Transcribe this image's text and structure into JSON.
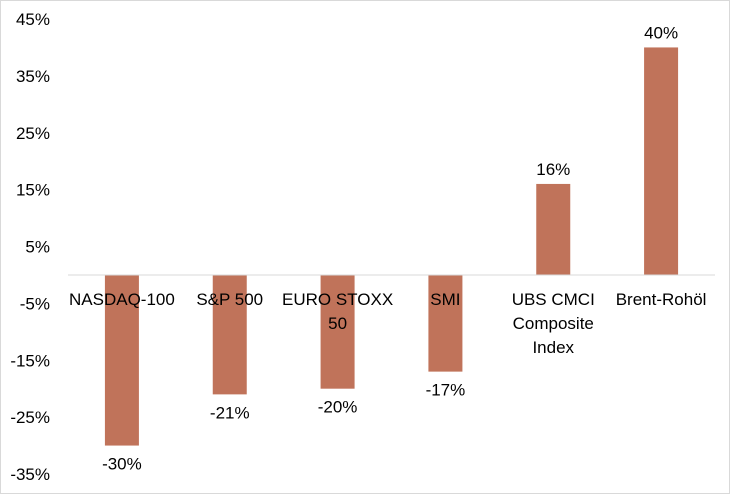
{
  "chart_data": {
    "type": "bar",
    "title": "",
    "xlabel": "",
    "ylabel": "",
    "categories": [
      [
        "NASDAQ-100"
      ],
      [
        "S&P 500"
      ],
      [
        "EURO STOXX",
        "50"
      ],
      [
        "SMI"
      ],
      [
        "UBS CMCI",
        "Composite",
        "Index"
      ],
      [
        "Brent-Rohöl"
      ]
    ],
    "values": [
      -30,
      -21,
      -20,
      -17,
      16,
      40
    ],
    "data_labels": [
      "-30%",
      "-21%",
      "-20%",
      "-17%",
      "16%",
      "40%"
    ],
    "y_ticks": [
      45,
      35,
      25,
      15,
      5,
      -5,
      -15,
      -25,
      -35
    ],
    "y_tick_labels": [
      "45%",
      "35%",
      "25%",
      "15%",
      "5%",
      "-5%",
      "-15%",
      "-25%",
      "-35%"
    ],
    "ylim": [
      -35,
      45
    ],
    "grid": false,
    "legend": "none",
    "colors": {
      "bar": "#c0735a",
      "axis": "#d9d9d9",
      "frame": "#d9d9d9"
    }
  }
}
